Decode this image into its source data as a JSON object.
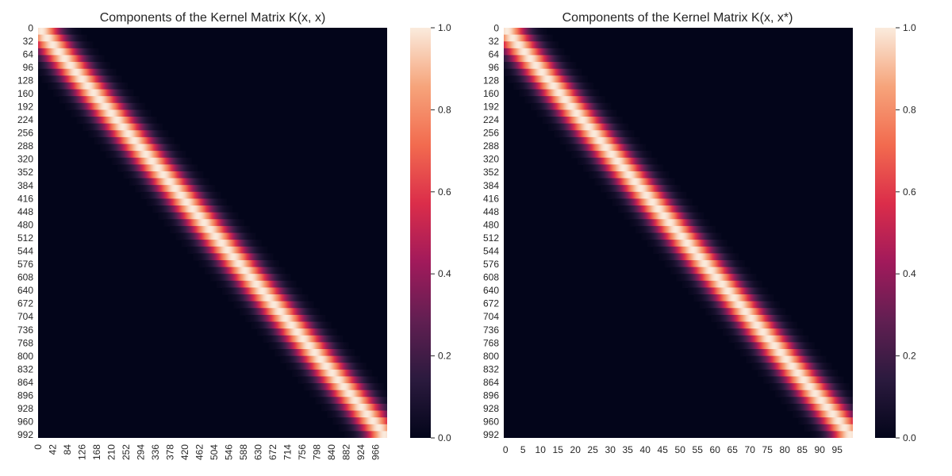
{
  "chart_data": [
    {
      "type": "heatmap",
      "title": "Components of the Kernel Matrix K(x, x)",
      "rows": 1000,
      "cols": 1000,
      "row_tick_labels": [
        "0",
        "32",
        "64",
        "96",
        "128",
        "160",
        "192",
        "224",
        "256",
        "288",
        "320",
        "352",
        "384",
        "416",
        "448",
        "480",
        "512",
        "544",
        "576",
        "608",
        "640",
        "672",
        "704",
        "736",
        "768",
        "800",
        "832",
        "864",
        "896",
        "928",
        "960",
        "992"
      ],
      "col_tick_labels": [
        "0",
        "42",
        "84",
        "126",
        "168",
        "210",
        "252",
        "294",
        "336",
        "378",
        "420",
        "462",
        "504",
        "546",
        "588",
        "630",
        "672",
        "714",
        "756",
        "798",
        "840",
        "882",
        "924",
        "966"
      ],
      "diagonal_value": 1.0,
      "band_width_in_rows": 115,
      "colorbar": {
        "vmin": 0.0,
        "vmax": 1.0,
        "tick_labels": [
          "0.0",
          "0.2",
          "0.4",
          "0.6",
          "0.8",
          "1.0"
        ]
      }
    },
    {
      "type": "heatmap",
      "title": "Components of the Kernel Matrix K(x, x*)",
      "rows": 1000,
      "cols": 100,
      "row_tick_labels": [
        "0",
        "32",
        "64",
        "96",
        "128",
        "160",
        "192",
        "224",
        "256",
        "288",
        "320",
        "352",
        "384",
        "416",
        "448",
        "480",
        "512",
        "544",
        "576",
        "608",
        "640",
        "672",
        "704",
        "736",
        "768",
        "800",
        "832",
        "864",
        "896",
        "928",
        "960",
        "992"
      ],
      "col_tick_labels": [
        "0",
        "5",
        "10",
        "15",
        "20",
        "25",
        "30",
        "35",
        "40",
        "45",
        "50",
        "55",
        "60",
        "65",
        "70",
        "75",
        "80",
        "85",
        "90",
        "95"
      ],
      "diagonal_value": 1.0,
      "band_width_in_rows": 115,
      "colorbar": {
        "vmin": 0.0,
        "vmax": 1.0,
        "tick_labels": [
          "0.0",
          "0.2",
          "0.4",
          "0.6",
          "0.8",
          "1.0"
        ]
      }
    }
  ],
  "colormap": {
    "name": "rocket",
    "stops": [
      "#03051a",
      "#2b1a3e",
      "#611f52",
      "#a11a5b",
      "#db2d4a",
      "#f26b4f",
      "#f6a47b",
      "#faebdd"
    ]
  }
}
